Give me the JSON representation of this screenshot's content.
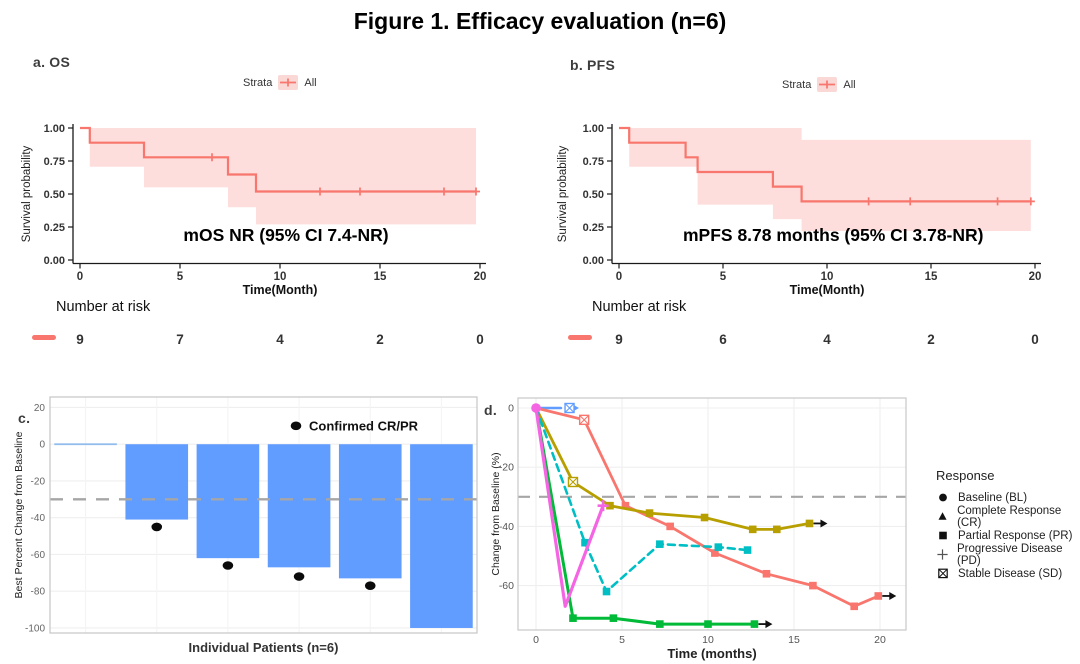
{
  "figure_title": "Figure 1. Efficacy evaluation (n=6)",
  "panels": {
    "a": {
      "letter": "a.",
      "title": "OS"
    },
    "b": {
      "letter": "b.",
      "title": "PFS"
    },
    "c": {
      "letter": "c."
    },
    "d": {
      "letter": "d."
    }
  },
  "chart_data": [
    {
      "id": "os-km",
      "type": "line",
      "subtype": "kaplan_meier",
      "panel": "a",
      "strata_label": "Strata",
      "strata_item": "All",
      "xlabel": "Time(Month)",
      "ylabel": "Survival probability",
      "xticks": [
        0,
        5,
        10,
        15,
        20
      ],
      "yticks": [
        0.0,
        0.25,
        0.5,
        0.75,
        1.0
      ],
      "xlim": [
        0,
        20
      ],
      "ylim": [
        0,
        1
      ],
      "annotation": "mOS NR (95% CI 7.4-NR)",
      "line_color": "#F8766D",
      "band_color": "#F8766D",
      "steps": [
        [
          0,
          1
        ],
        [
          0.49,
          1
        ],
        [
          0.49,
          0.889
        ],
        [
          3.2,
          0.889
        ],
        [
          3.2,
          0.778
        ],
        [
          7.4,
          0.778
        ],
        [
          7.4,
          0.648
        ],
        [
          8.8,
          0.648
        ],
        [
          8.8,
          0.519
        ],
        [
          19.8,
          0.519
        ]
      ],
      "censored": [
        [
          6.6,
          0.778
        ],
        [
          12,
          0.519
        ],
        [
          14,
          0.519
        ],
        [
          18.2,
          0.519
        ],
        [
          19.8,
          0.519
        ]
      ],
      "ci_upper": [
        [
          0.49,
          1
        ],
        [
          19.8,
          1
        ]
      ],
      "ci_lower": [
        [
          0.49,
          0.706
        ],
        [
          3.2,
          0.706
        ],
        [
          3.2,
          0.55
        ],
        [
          7.4,
          0.55
        ],
        [
          7.4,
          0.4
        ],
        [
          8.8,
          0.4
        ],
        [
          8.8,
          0.27
        ],
        [
          19.8,
          0.27
        ]
      ],
      "number_at_risk": {
        "title": "Number at risk",
        "times": [
          0,
          5,
          10,
          15,
          20
        ],
        "counts": [
          9,
          7,
          4,
          2,
          0
        ]
      }
    },
    {
      "id": "pfs-km",
      "type": "line",
      "subtype": "kaplan_meier",
      "panel": "b",
      "strata_label": "Strata",
      "strata_item": "All",
      "xlabel": "Time(Month)",
      "ylabel": "Survival probability",
      "xticks": [
        0,
        5,
        10,
        15,
        20
      ],
      "yticks": [
        0.0,
        0.25,
        0.5,
        0.75,
        1.0
      ],
      "xlim": [
        0,
        20
      ],
      "ylim": [
        0,
        1
      ],
      "annotation": "mPFS 8.78 months (95% CI 3.78-NR)",
      "line_color": "#F8766D",
      "band_color": "#F8766D",
      "steps": [
        [
          0,
          1
        ],
        [
          0.49,
          1
        ],
        [
          0.49,
          0.889
        ],
        [
          3.2,
          0.889
        ],
        [
          3.2,
          0.778
        ],
        [
          3.78,
          0.778
        ],
        [
          3.78,
          0.667
        ],
        [
          7.4,
          0.667
        ],
        [
          7.4,
          0.556
        ],
        [
          8.78,
          0.556
        ],
        [
          8.78,
          0.444
        ],
        [
          19.8,
          0.444
        ]
      ],
      "censored": [
        [
          12,
          0.444
        ],
        [
          14,
          0.444
        ],
        [
          18.2,
          0.444
        ],
        [
          19.8,
          0.444
        ]
      ],
      "ci_upper": [
        [
          0.49,
          1
        ],
        [
          8.78,
          1
        ],
        [
          8.78,
          0.91
        ],
        [
          19.8,
          0.91
        ]
      ],
      "ci_lower": [
        [
          0.49,
          0.706
        ],
        [
          3.78,
          0.706
        ],
        [
          3.78,
          0.42
        ],
        [
          7.4,
          0.42
        ],
        [
          7.4,
          0.31
        ],
        [
          8.78,
          0.31
        ],
        [
          8.78,
          0.22
        ],
        [
          19.8,
          0.22
        ]
      ],
      "number_at_risk": {
        "title": "Number at risk",
        "times": [
          0,
          5,
          10,
          15,
          20
        ],
        "counts": [
          9,
          6,
          4,
          2,
          0
        ]
      }
    },
    {
      "id": "waterfall",
      "type": "bar",
      "panel": "c",
      "xlabel": "Individual Patients (n=6)",
      "ylabel": "Best Percent Change from Baseline",
      "yticks": [
        20,
        0,
        -20,
        -40,
        -60,
        -80,
        -100
      ],
      "ylim": [
        -105,
        25
      ],
      "bar_color": "#619CFF",
      "zero_bar_color": "#92BCEC",
      "dot_color": "#0b0b0b",
      "reference_line": -30,
      "reference_color": "#A6A6A6",
      "values": [
        0,
        -41,
        -62,
        -67,
        -73,
        -100
      ],
      "confirmed_dots": [
        null,
        -45,
        -66,
        -72,
        -77,
        null
      ],
      "legend_label": "Confirmed CR/PR"
    },
    {
      "id": "spider",
      "type": "line",
      "panel": "d",
      "xlabel": "Time (months)",
      "ylabel": "Change from Baseline (%)",
      "xticks": [
        0,
        5,
        10,
        15,
        20
      ],
      "yticks": [
        0,
        -20,
        -40,
        -60
      ],
      "xlim": [
        0,
        21
      ],
      "ylim": [
        -75,
        4
      ],
      "reference_line": -30,
      "reference_color": "#A6A6A6",
      "baseline_point": {
        "x": 0,
        "y": 0,
        "color": "#F564E3"
      },
      "series": [
        {
          "name": "patient-1-sd",
          "color": "#619CFF",
          "dash": false,
          "width": 2.6,
          "points": [
            [
              0,
              0
            ],
            [
              1.45,
              0
            ]
          ],
          "markers": [
            "none",
            "none"
          ],
          "arrow": "#619CFF",
          "extra_marker": {
            "type": "sd",
            "at": [
              1.95,
              0
            ]
          }
        },
        {
          "name": "patient-2-pr",
          "color": "#F8766D",
          "dash": false,
          "width": 2.8,
          "points": [
            [
              0,
              0
            ],
            [
              2.8,
              -4
            ],
            [
              5.2,
              -33
            ],
            [
              7.8,
              -40
            ],
            [
              10.4,
              -49
            ],
            [
              13.4,
              -56
            ],
            [
              16.1,
              -60
            ],
            [
              18.5,
              -67
            ],
            [
              19.9,
              -63.5
            ]
          ],
          "markers": [
            "none",
            "sd",
            "pr",
            "pr",
            "pr",
            "pr",
            "pr",
            "pr",
            "pr"
          ],
          "arrow": "#111111"
        },
        {
          "name": "patient-3-pr",
          "color": "#B79F00",
          "dash": false,
          "width": 2.8,
          "points": [
            [
              0,
              0
            ],
            [
              2.15,
              -25
            ],
            [
              4.3,
              -33
            ],
            [
              6.6,
              -35.5
            ],
            [
              9.8,
              -37
            ],
            [
              12.6,
              -41
            ],
            [
              14,
              -41
            ],
            [
              15.9,
              -39
            ]
          ],
          "markers": [
            "none",
            "sd",
            "pr",
            "pr",
            "pr",
            "pr",
            "pr",
            "pr"
          ],
          "arrow": "#111111"
        },
        {
          "name": "patient-4-pr",
          "color": "#00BFC4",
          "dash": true,
          "width": 2.6,
          "points": [
            [
              0,
              0
            ],
            [
              2.85,
              -45.5
            ],
            [
              4.1,
              -62
            ],
            [
              7.2,
              -46
            ],
            [
              10.6,
              -47
            ],
            [
              12.3,
              -48
            ]
          ],
          "markers": [
            "none",
            "pr",
            "pr",
            "pr",
            "pr",
            "pr"
          ],
          "arrow": null
        },
        {
          "name": "patient-5-pr",
          "color": "#00BA38",
          "dash": false,
          "width": 3.0,
          "points": [
            [
              0,
              0
            ],
            [
              2.15,
              -71
            ],
            [
              4.5,
              -71
            ],
            [
              7.2,
              -73
            ],
            [
              10,
              -73
            ],
            [
              12.7,
              -73
            ]
          ],
          "markers": [
            "none",
            "pr",
            "pr",
            "pr",
            "pr",
            "pr"
          ],
          "arrow": "#111111"
        },
        {
          "name": "patient-6-pd",
          "color": "#F564E3",
          "dash": false,
          "width": 3.2,
          "points": [
            [
              0,
              0
            ],
            [
              1.7,
              -67
            ],
            [
              3.9,
              -33
            ]
          ],
          "markers": [
            "none",
            "none",
            "pd"
          ],
          "arrow": null
        }
      ],
      "legend": {
        "title": "Response",
        "items": [
          {
            "glyph": "circle",
            "label": "Baseline (BL)"
          },
          {
            "glyph": "triangle",
            "label": "Complete Response (CR)"
          },
          {
            "glyph": "square",
            "label": "Partial Response (PR)"
          },
          {
            "glyph": "plus",
            "label": "Progressive Disease (PD)"
          },
          {
            "glyph": "square_x",
            "label": "Stable Disease (SD)"
          }
        ]
      }
    }
  ]
}
